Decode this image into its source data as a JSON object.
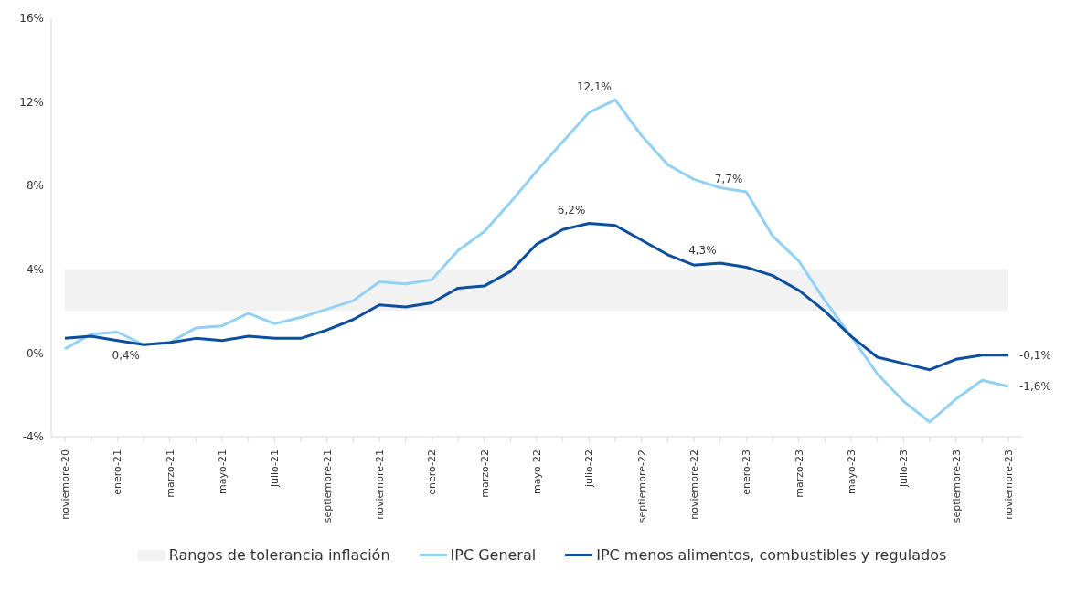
{
  "chart_data": {
    "type": "line",
    "categories": [
      "noviembre-20",
      null,
      "enero-21",
      null,
      "marzo-21",
      null,
      "mayo-21",
      null,
      "julio-21",
      null,
      "septiembre-21",
      null,
      "noviembre-21",
      null,
      "enero-22",
      null,
      "marzo-22",
      null,
      "mayo-22",
      null,
      "julio-22",
      null,
      "septiembre-22",
      null,
      "noviembre-22",
      null,
      "enero-23",
      null,
      "marzo-23",
      null,
      "mayo-23",
      null,
      "julio-23",
      null,
      "septiembre-23",
      null,
      "noviembre-23"
    ],
    "series": [
      {
        "name": "IPC General",
        "color": "#92d1f3",
        "values": [
          0.2,
          0.9,
          1.0,
          0.4,
          0.5,
          1.2,
          1.3,
          1.9,
          1.4,
          1.7,
          2.1,
          2.5,
          3.4,
          3.3,
          3.5,
          4.9,
          5.8,
          7.2,
          8.7,
          10.1,
          11.5,
          12.1,
          10.4,
          9.0,
          8.3,
          7.9,
          7.7,
          5.6,
          4.4,
          2.5,
          0.8,
          -1.0,
          -2.3,
          -3.3,
          -2.2,
          -1.3,
          -1.6
        ],
        "value_labels": [
          null,
          null,
          null,
          null,
          null,
          null,
          null,
          null,
          null,
          null,
          null,
          null,
          null,
          null,
          null,
          null,
          null,
          null,
          null,
          null,
          null,
          "12,1%",
          null,
          null,
          null,
          null,
          "7,7%",
          null,
          null,
          null,
          null,
          null,
          null,
          null,
          null,
          null,
          "-1,6%"
        ]
      },
      {
        "name": "IPC menos alimentos, combustibles y regulados",
        "color": "#0d4f9c",
        "values": [
          0.7,
          0.8,
          0.6,
          0.4,
          0.5,
          0.7,
          0.6,
          0.8,
          0.7,
          0.7,
          1.1,
          1.6,
          2.3,
          2.2,
          2.4,
          3.1,
          3.2,
          3.9,
          5.2,
          5.9,
          6.2,
          6.1,
          5.4,
          4.7,
          4.2,
          4.3,
          4.1,
          3.7,
          3.0,
          2.0,
          0.8,
          -0.2,
          -0.5,
          -0.8,
          -0.3,
          -0.1,
          -0.1
        ],
        "value_labels": [
          null,
          null,
          null,
          "0,4%",
          null,
          null,
          null,
          null,
          null,
          null,
          null,
          null,
          null,
          null,
          null,
          null,
          null,
          null,
          null,
          null,
          "6,2%",
          null,
          null,
          null,
          null,
          "4,3%",
          null,
          null,
          null,
          null,
          null,
          null,
          null,
          null,
          null,
          null,
          "-0,1%"
        ]
      }
    ],
    "bands": [
      {
        "axis": "y",
        "from": 2,
        "to": 4,
        "label": "Rangos de tolerancia inflación",
        "color": "#f2f2f2"
      }
    ],
    "ylim": [
      -4,
      16
    ],
    "yticks": [
      {
        "value": -4,
        "label": "-4%"
      },
      {
        "value": 0,
        "label": "0%"
      },
      {
        "value": 4,
        "label": "4%"
      },
      {
        "value": 8,
        "label": "8%"
      },
      {
        "value": 12,
        "label": "12%"
      },
      {
        "value": 16,
        "label": "16%"
      }
    ],
    "grid": false,
    "legend": "bottom",
    "marker": "none",
    "line_style": "solid"
  }
}
